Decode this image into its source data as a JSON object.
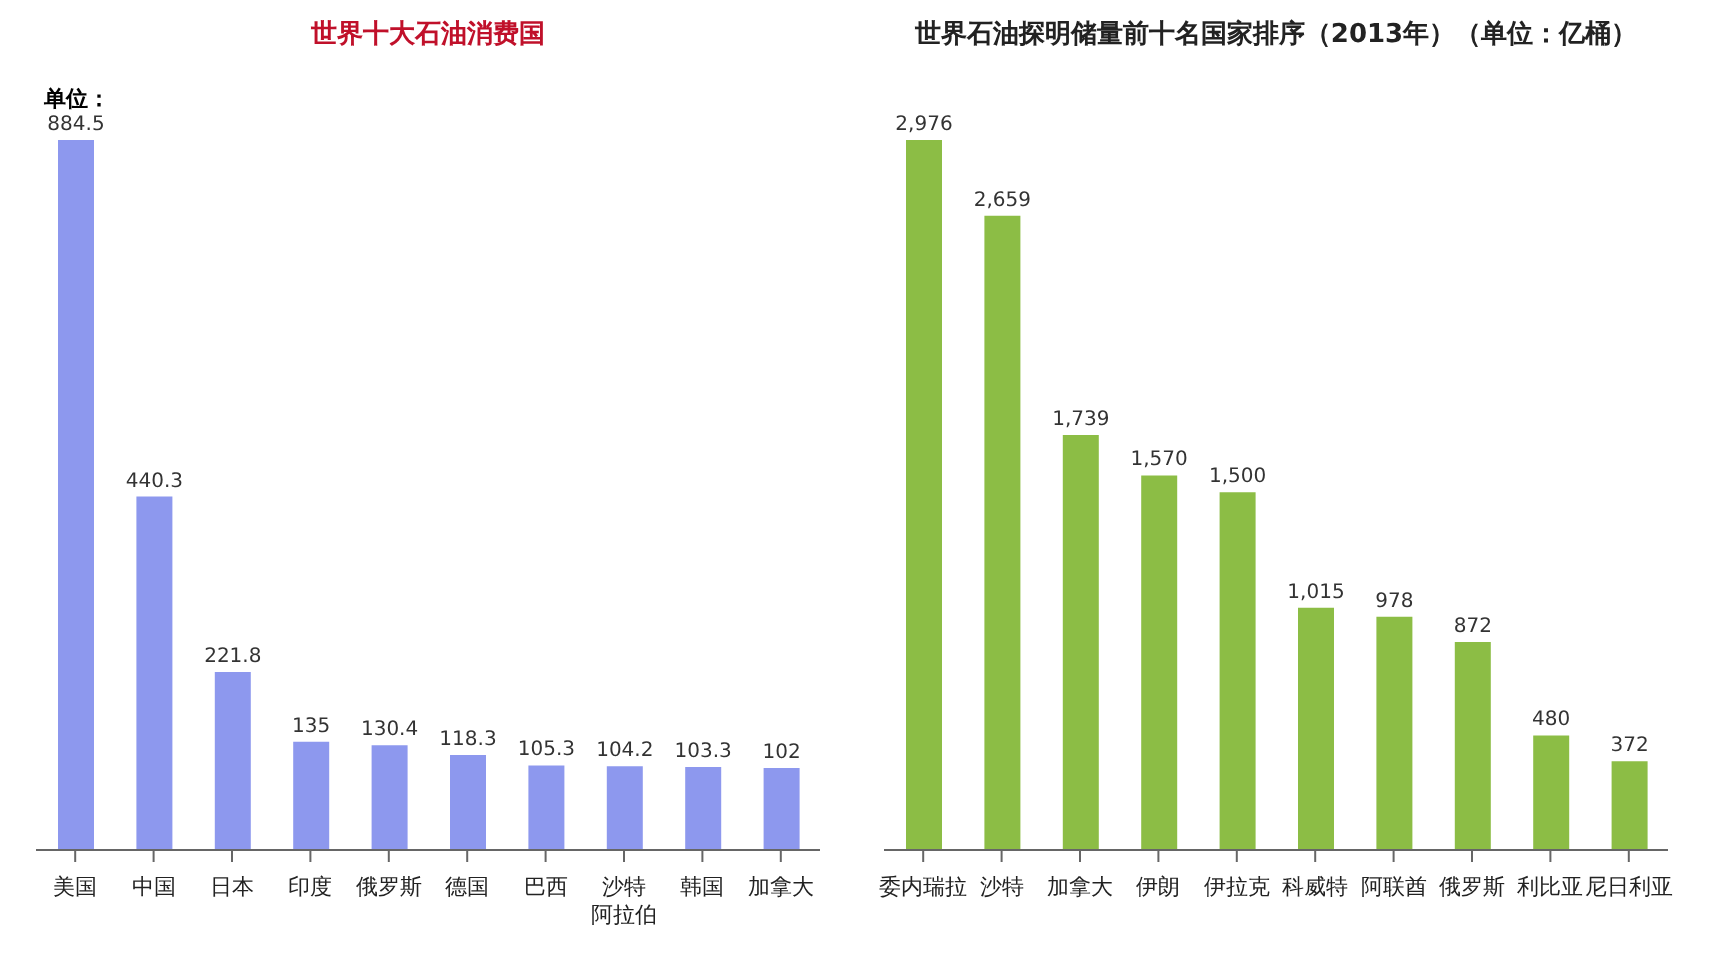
{
  "chart_data": [
    {
      "type": "bar",
      "title": "世界十大石油消费国",
      "annotations": [
        "单位："
      ],
      "categories": [
        "美国",
        "中国",
        "日本",
        "印度",
        "俄罗斯",
        "德国",
        "巴西",
        "沙特阿拉伯",
        "韩国",
        "加拿大"
      ],
      "values": [
        884.5,
        440.3,
        221.8,
        135,
        130.4,
        118.3,
        105.3,
        104.2,
        103.3,
        102
      ],
      "color": "#8d98ee",
      "data_labels": true,
      "grid": false,
      "legend": false
    },
    {
      "type": "bar",
      "title": "世界石油探明储量前十名国家排序（2013年）（单位：亿桶）",
      "categories": [
        "委内瑞拉",
        "沙特",
        "加拿大",
        "伊朗",
        "伊拉克",
        "科威特",
        "阿联酋",
        "俄罗斯",
        "利比亚",
        "尼日利亚"
      ],
      "values": [
        2976,
        2659,
        1739,
        1570,
        1500,
        1015,
        978,
        872,
        480,
        372
      ],
      "value_labels": [
        "2,976",
        "2,659",
        "1,739",
        "1,570",
        "1,500",
        "1,015",
        "978",
        "872",
        "480",
        "372"
      ],
      "color": "#8cbd45",
      "grid": false,
      "legend": false
    }
  ]
}
